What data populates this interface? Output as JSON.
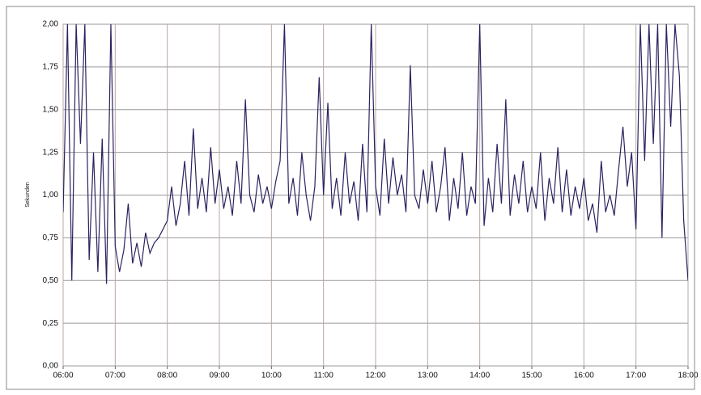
{
  "chart_data": {
    "type": "line",
    "y_label": "Sekunden",
    "categories": [
      "06:00",
      null,
      null,
      null,
      null,
      null,
      null,
      null,
      null,
      null,
      null,
      null,
      "07:00",
      null,
      null,
      null,
      null,
      null,
      null,
      null,
      null,
      null,
      null,
      null,
      "08:00",
      null,
      null,
      null,
      null,
      null,
      null,
      null,
      null,
      null,
      null,
      null,
      "09:00",
      null,
      null,
      null,
      null,
      null,
      null,
      null,
      null,
      null,
      null,
      null,
      "10:00",
      null,
      null,
      null,
      null,
      null,
      null,
      null,
      null,
      null,
      null,
      null,
      "11:00",
      null,
      null,
      null,
      null,
      null,
      null,
      null,
      null,
      null,
      null,
      null,
      "12:00",
      null,
      null,
      null,
      null,
      null,
      null,
      null,
      null,
      null,
      null,
      null,
      "13:00",
      null,
      null,
      null,
      null,
      null,
      null,
      null,
      null,
      null,
      null,
      null,
      "14:00",
      null,
      null,
      null,
      null,
      null,
      null,
      null,
      null,
      null,
      null,
      null,
      "15:00",
      null,
      null,
      null,
      null,
      null,
      null,
      null,
      null,
      null,
      null,
      null,
      "16:00",
      null,
      null,
      null,
      null,
      null,
      null,
      null,
      null,
      null,
      null,
      null,
      "17:00",
      null,
      null,
      null,
      null,
      null,
      null,
      null,
      null,
      null,
      null,
      null,
      "18:00"
    ],
    "values": [
      0.9,
      2.0,
      0.5,
      2.0,
      1.3,
      2.0,
      0.62,
      1.25,
      0.55,
      1.33,
      0.48,
      2.0,
      0.7,
      0.55,
      0.68,
      0.95,
      0.6,
      0.72,
      0.58,
      0.78,
      0.66,
      0.72,
      0.75,
      0.8,
      0.85,
      1.05,
      0.82,
      0.95,
      1.2,
      0.88,
      1.39,
      0.92,
      1.1,
      0.9,
      1.28,
      0.95,
      1.15,
      0.92,
      1.05,
      0.88,
      1.2,
      0.95,
      1.56,
      1.0,
      0.9,
      1.12,
      0.95,
      1.05,
      0.92,
      1.08,
      1.2,
      2.0,
      0.95,
      1.1,
      0.88,
      1.25,
      1.0,
      0.85,
      1.05,
      1.69,
      1.0,
      1.54,
      0.92,
      1.1,
      0.88,
      1.25,
      0.95,
      1.08,
      0.85,
      1.3,
      0.9,
      2.0,
      1.05,
      0.88,
      1.33,
      0.95,
      1.22,
      1.0,
      1.12,
      0.9,
      1.76,
      1.0,
      0.92,
      1.15,
      0.95,
      1.2,
      0.9,
      1.05,
      1.28,
      0.85,
      1.1,
      0.92,
      1.25,
      0.88,
      1.05,
      0.95,
      2.0,
      0.82,
      1.1,
      0.9,
      1.3,
      0.95,
      1.56,
      0.88,
      1.12,
      0.95,
      1.2,
      0.9,
      1.05,
      0.92,
      1.25,
      0.85,
      1.1,
      0.95,
      1.28,
      0.9,
      1.15,
      0.88,
      1.05,
      0.92,
      1.1,
      0.85,
      0.95,
      0.78,
      1.2,
      0.9,
      1.0,
      0.88,
      1.15,
      1.4,
      1.05,
      1.25,
      0.8,
      2.0,
      1.2,
      2.0,
      1.3,
      2.0,
      0.75,
      2.0,
      1.4,
      2.0,
      1.7,
      0.85,
      0.5
    ],
    "color": "#2b2260",
    "ylim": [
      0,
      2
    ],
    "yticks": [
      {
        "value": 0,
        "label": "0,00"
      },
      {
        "value": 0.25,
        "label": "0,25"
      },
      {
        "value": 0.5,
        "label": "0,50"
      },
      {
        "value": 0.75,
        "label": "0,75"
      },
      {
        "value": 1,
        "label": "1,00"
      },
      {
        "value": 1.25,
        "label": "1,25"
      },
      {
        "value": 1.5,
        "label": "1,50"
      },
      {
        "value": 1.75,
        "label": "1,75"
      },
      {
        "value": 2,
        "label": "2,00"
      }
    ],
    "grid": true
  }
}
